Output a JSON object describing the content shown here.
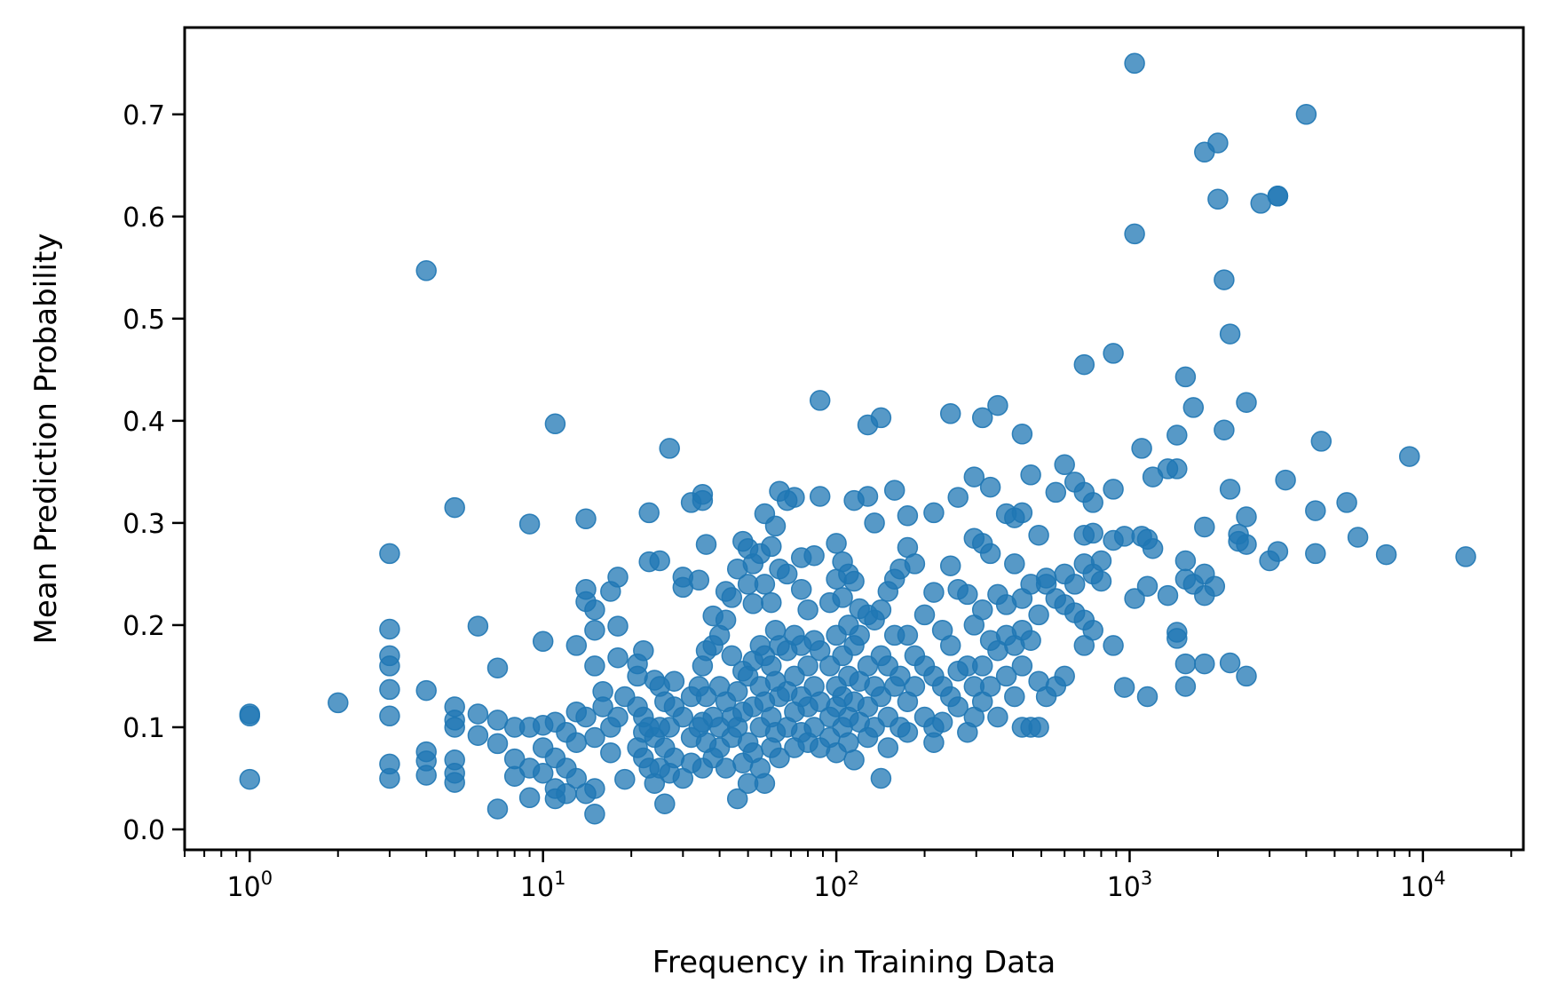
{
  "chart_data": {
    "type": "scatter",
    "title": "",
    "xlabel": "Frequency in Training Data",
    "ylabel": "Mean Prediction Probability",
    "xscale": "log",
    "xlim": [
      0.6,
      22000
    ],
    "ylim": [
      -0.02,
      0.785
    ],
    "x_ticks": [
      {
        "base": "10",
        "exp": "0",
        "value": 1
      },
      {
        "base": "10",
        "exp": "1",
        "value": 10
      },
      {
        "base": "10",
        "exp": "2",
        "value": 100
      },
      {
        "base": "10",
        "exp": "3",
        "value": 1000
      },
      {
        "base": "10",
        "exp": "4",
        "value": 10000
      }
    ],
    "y_ticks": [
      {
        "label": "0.0",
        "value": 0.0
      },
      {
        "label": "0.1",
        "value": 0.1
      },
      {
        "label": "0.2",
        "value": 0.2
      },
      {
        "label": "0.3",
        "value": 0.3
      },
      {
        "label": "0.4",
        "value": 0.4
      },
      {
        "label": "0.5",
        "value": 0.5
      },
      {
        "label": "0.6",
        "value": 0.6
      },
      {
        "label": "0.7",
        "value": 0.7
      }
    ],
    "grid": false,
    "legend": "none",
    "marker_color": "#1f77b4",
    "marker_alpha": 0.75,
    "points": [
      [
        1,
        0.113
      ],
      [
        1,
        0.111
      ],
      [
        1,
        0.049
      ],
      [
        2,
        0.124
      ],
      [
        3,
        0.27
      ],
      [
        3,
        0.196
      ],
      [
        3,
        0.17
      ],
      [
        3,
        0.16
      ],
      [
        3,
        0.137
      ],
      [
        3,
        0.111
      ],
      [
        3,
        0.064
      ],
      [
        3,
        0.05
      ],
      [
        4,
        0.547
      ],
      [
        4,
        0.136
      ],
      [
        4,
        0.076
      ],
      [
        4,
        0.067
      ],
      [
        4,
        0.053
      ],
      [
        5,
        0.315
      ],
      [
        5,
        0.12
      ],
      [
        5,
        0.107
      ],
      [
        5,
        0.1
      ],
      [
        5,
        0.068
      ],
      [
        5,
        0.055
      ],
      [
        5,
        0.046
      ],
      [
        6,
        0.199
      ],
      [
        6,
        0.113
      ],
      [
        6,
        0.092
      ],
      [
        7,
        0.158
      ],
      [
        7,
        0.107
      ],
      [
        7,
        0.084
      ],
      [
        7,
        0.02
      ],
      [
        8,
        0.1
      ],
      [
        8,
        0.069
      ],
      [
        8,
        0.052
      ],
      [
        9,
        0.299
      ],
      [
        9,
        0.1
      ],
      [
        9,
        0.06
      ],
      [
        9,
        0.031
      ],
      [
        10,
        0.184
      ],
      [
        10,
        0.102
      ],
      [
        10,
        0.08
      ],
      [
        10,
        0.055
      ],
      [
        11,
        0.397
      ],
      [
        11,
        0.105
      ],
      [
        11,
        0.07
      ],
      [
        11,
        0.04
      ],
      [
        11,
        0.03
      ],
      [
        12,
        0.095
      ],
      [
        12,
        0.06
      ],
      [
        12,
        0.035
      ],
      [
        13,
        0.18
      ],
      [
        13,
        0.115
      ],
      [
        13,
        0.085
      ],
      [
        13,
        0.05
      ],
      [
        14,
        0.304
      ],
      [
        14,
        0.235
      ],
      [
        14,
        0.223
      ],
      [
        14,
        0.11
      ],
      [
        14,
        0.035
      ],
      [
        15,
        0.215
      ],
      [
        15,
        0.195
      ],
      [
        15,
        0.16
      ],
      [
        15,
        0.09
      ],
      [
        15,
        0.04
      ],
      [
        15,
        0.015
      ],
      [
        16,
        0.135
      ],
      [
        16,
        0.12
      ],
      [
        17,
        0.233
      ],
      [
        17,
        0.1
      ],
      [
        17,
        0.075
      ],
      [
        18,
        0.247
      ],
      [
        18,
        0.199
      ],
      [
        18,
        0.168
      ],
      [
        18,
        0.11
      ],
      [
        19,
        0.13
      ],
      [
        19,
        0.049
      ],
      [
        21,
        0.162
      ],
      [
        21,
        0.15
      ],
      [
        21,
        0.12
      ],
      [
        21,
        0.08
      ],
      [
        22,
        0.175
      ],
      [
        22,
        0.11
      ],
      [
        22,
        0.095
      ],
      [
        22,
        0.07
      ],
      [
        23,
        0.31
      ],
      [
        23,
        0.262
      ],
      [
        23,
        0.1
      ],
      [
        23,
        0.06
      ],
      [
        24,
        0.146
      ],
      [
        24,
        0.09
      ],
      [
        24,
        0.045
      ],
      [
        25,
        0.263
      ],
      [
        25,
        0.14
      ],
      [
        25,
        0.1
      ],
      [
        25,
        0.06
      ],
      [
        26,
        0.125
      ],
      [
        26,
        0.08
      ],
      [
        26,
        0.025
      ],
      [
        27,
        0.373
      ],
      [
        27,
        0.1
      ],
      [
        27,
        0.055
      ],
      [
        28,
        0.145
      ],
      [
        28,
        0.12
      ],
      [
        28,
        0.07
      ],
      [
        30,
        0.247
      ],
      [
        30,
        0.237
      ],
      [
        30,
        0.11
      ],
      [
        30,
        0.05
      ],
      [
        32,
        0.32
      ],
      [
        32,
        0.13
      ],
      [
        32,
        0.09
      ],
      [
        32,
        0.065
      ],
      [
        34,
        0.244
      ],
      [
        34,
        0.14
      ],
      [
        34,
        0.1
      ],
      [
        35,
        0.328
      ],
      [
        35,
        0.322
      ],
      [
        35,
        0.16
      ],
      [
        35,
        0.105
      ],
      [
        35,
        0.06
      ],
      [
        36,
        0.279
      ],
      [
        36,
        0.175
      ],
      [
        36,
        0.13
      ],
      [
        36,
        0.085
      ],
      [
        38,
        0.209
      ],
      [
        38,
        0.18
      ],
      [
        38,
        0.11
      ],
      [
        38,
        0.07
      ],
      [
        40,
        0.19
      ],
      [
        40,
        0.14
      ],
      [
        40,
        0.1
      ],
      [
        40,
        0.08
      ],
      [
        42,
        0.233
      ],
      [
        42,
        0.205
      ],
      [
        42,
        0.125
      ],
      [
        42,
        0.06
      ],
      [
        44,
        0.227
      ],
      [
        44,
        0.17
      ],
      [
        44,
        0.11
      ],
      [
        44,
        0.09
      ],
      [
        46,
        0.255
      ],
      [
        46,
        0.135
      ],
      [
        46,
        0.1
      ],
      [
        46,
        0.03
      ],
      [
        48,
        0.282
      ],
      [
        48,
        0.155
      ],
      [
        48,
        0.115
      ],
      [
        48,
        0.065
      ],
      [
        50,
        0.275
      ],
      [
        50,
        0.24
      ],
      [
        50,
        0.15
      ],
      [
        50,
        0.085
      ],
      [
        50,
        0.045
      ],
      [
        52,
        0.26
      ],
      [
        52,
        0.221
      ],
      [
        52,
        0.165
      ],
      [
        52,
        0.12
      ],
      [
        52,
        0.075
      ],
      [
        55,
        0.27
      ],
      [
        55,
        0.18
      ],
      [
        55,
        0.14
      ],
      [
        55,
        0.1
      ],
      [
        55,
        0.06
      ],
      [
        57,
        0.309
      ],
      [
        57,
        0.24
      ],
      [
        57,
        0.17
      ],
      [
        57,
        0.125
      ],
      [
        57,
        0.045
      ],
      [
        60,
        0.277
      ],
      [
        60,
        0.222
      ],
      [
        60,
        0.16
      ],
      [
        60,
        0.11
      ],
      [
        60,
        0.08
      ],
      [
        62,
        0.297
      ],
      [
        62,
        0.195
      ],
      [
        62,
        0.145
      ],
      [
        62,
        0.095
      ],
      [
        64,
        0.331
      ],
      [
        64,
        0.255
      ],
      [
        64,
        0.18
      ],
      [
        64,
        0.13
      ],
      [
        64,
        0.07
      ],
      [
        68,
        0.322
      ],
      [
        68,
        0.25
      ],
      [
        68,
        0.175
      ],
      [
        68,
        0.135
      ],
      [
        68,
        0.1
      ],
      [
        72,
        0.325
      ],
      [
        72,
        0.19
      ],
      [
        72,
        0.15
      ],
      [
        72,
        0.115
      ],
      [
        72,
        0.08
      ],
      [
        76,
        0.266
      ],
      [
        76,
        0.235
      ],
      [
        76,
        0.18
      ],
      [
        76,
        0.13
      ],
      [
        76,
        0.095
      ],
      [
        80,
        0.215
      ],
      [
        80,
        0.16
      ],
      [
        80,
        0.12
      ],
      [
        80,
        0.085
      ],
      [
        84,
        0.268
      ],
      [
        84,
        0.185
      ],
      [
        84,
        0.14
      ],
      [
        84,
        0.1
      ],
      [
        88,
        0.42
      ],
      [
        88,
        0.326
      ],
      [
        88,
        0.175
      ],
      [
        88,
        0.125
      ],
      [
        88,
        0.08
      ],
      [
        95,
        0.222
      ],
      [
        95,
        0.16
      ],
      [
        95,
        0.11
      ],
      [
        95,
        0.09
      ],
      [
        100,
        0.28
      ],
      [
        100,
        0.245
      ],
      [
        100,
        0.19
      ],
      [
        100,
        0.14
      ],
      [
        100,
        0.12
      ],
      [
        100,
        0.075
      ],
      [
        105,
        0.262
      ],
      [
        105,
        0.227
      ],
      [
        105,
        0.17
      ],
      [
        105,
        0.13
      ],
      [
        105,
        0.1
      ],
      [
        110,
        0.25
      ],
      [
        110,
        0.2
      ],
      [
        110,
        0.15
      ],
      [
        110,
        0.11
      ],
      [
        110,
        0.085
      ],
      [
        115,
        0.322
      ],
      [
        115,
        0.243
      ],
      [
        115,
        0.18
      ],
      [
        115,
        0.125
      ],
      [
        115,
        0.068
      ],
      [
        120,
        0.216
      ],
      [
        120,
        0.19
      ],
      [
        120,
        0.145
      ],
      [
        120,
        0.105
      ],
      [
        128,
        0.396
      ],
      [
        128,
        0.326
      ],
      [
        128,
        0.21
      ],
      [
        128,
        0.16
      ],
      [
        128,
        0.12
      ],
      [
        128,
        0.09
      ],
      [
        135,
        0.3
      ],
      [
        135,
        0.205
      ],
      [
        135,
        0.14
      ],
      [
        135,
        0.1
      ],
      [
        142,
        0.403
      ],
      [
        142,
        0.215
      ],
      [
        142,
        0.17
      ],
      [
        142,
        0.13
      ],
      [
        142,
        0.05
      ],
      [
        150,
        0.233
      ],
      [
        150,
        0.16
      ],
      [
        150,
        0.11
      ],
      [
        150,
        0.08
      ],
      [
        158,
        0.332
      ],
      [
        158,
        0.245
      ],
      [
        158,
        0.19
      ],
      [
        158,
        0.14
      ],
      [
        165,
        0.255
      ],
      [
        165,
        0.15
      ],
      [
        165,
        0.1
      ],
      [
        175,
        0.307
      ],
      [
        175,
        0.276
      ],
      [
        175,
        0.19
      ],
      [
        175,
        0.125
      ],
      [
        175,
        0.095
      ],
      [
        185,
        0.26
      ],
      [
        185,
        0.17
      ],
      [
        185,
        0.14
      ],
      [
        200,
        0.21
      ],
      [
        200,
        0.16
      ],
      [
        200,
        0.11
      ],
      [
        215,
        0.31
      ],
      [
        215,
        0.232
      ],
      [
        215,
        0.15
      ],
      [
        215,
        0.1
      ],
      [
        215,
        0.085
      ],
      [
        230,
        0.195
      ],
      [
        230,
        0.14
      ],
      [
        230,
        0.105
      ],
      [
        245,
        0.407
      ],
      [
        245,
        0.258
      ],
      [
        245,
        0.18
      ],
      [
        245,
        0.13
      ],
      [
        260,
        0.325
      ],
      [
        260,
        0.235
      ],
      [
        260,
        0.155
      ],
      [
        260,
        0.12
      ],
      [
        280,
        0.23
      ],
      [
        280,
        0.16
      ],
      [
        280,
        0.095
      ],
      [
        295,
        0.345
      ],
      [
        295,
        0.285
      ],
      [
        295,
        0.2
      ],
      [
        295,
        0.14
      ],
      [
        295,
        0.11
      ],
      [
        315,
        0.403
      ],
      [
        315,
        0.28
      ],
      [
        315,
        0.215
      ],
      [
        315,
        0.16
      ],
      [
        315,
        0.125
      ],
      [
        335,
        0.335
      ],
      [
        335,
        0.27
      ],
      [
        335,
        0.185
      ],
      [
        335,
        0.14
      ],
      [
        355,
        0.415
      ],
      [
        355,
        0.23
      ],
      [
        355,
        0.175
      ],
      [
        355,
        0.11
      ],
      [
        380,
        0.309
      ],
      [
        380,
        0.22
      ],
      [
        380,
        0.19
      ],
      [
        380,
        0.15
      ],
      [
        405,
        0.305
      ],
      [
        405,
        0.26
      ],
      [
        405,
        0.18
      ],
      [
        405,
        0.13
      ],
      [
        430,
        0.387
      ],
      [
        430,
        0.31
      ],
      [
        430,
        0.226
      ],
      [
        430,
        0.195
      ],
      [
        430,
        0.16
      ],
      [
        430,
        0.1
      ],
      [
        460,
        0.347
      ],
      [
        460,
        0.24
      ],
      [
        460,
        0.185
      ],
      [
        460,
        0.1
      ],
      [
        490,
        0.288
      ],
      [
        490,
        0.21
      ],
      [
        490,
        0.145
      ],
      [
        490,
        0.1
      ],
      [
        520,
        0.246
      ],
      [
        520,
        0.24
      ],
      [
        520,
        0.13
      ],
      [
        560,
        0.33
      ],
      [
        560,
        0.226
      ],
      [
        560,
        0.14
      ],
      [
        600,
        0.357
      ],
      [
        600,
        0.25
      ],
      [
        600,
        0.22
      ],
      [
        600,
        0.15
      ],
      [
        650,
        0.34
      ],
      [
        650,
        0.24
      ],
      [
        650,
        0.212
      ],
      [
        700,
        0.455
      ],
      [
        700,
        0.33
      ],
      [
        700,
        0.288
      ],
      [
        700,
        0.26
      ],
      [
        700,
        0.205
      ],
      [
        700,
        0.18
      ],
      [
        750,
        0.29
      ],
      [
        750,
        0.32
      ],
      [
        750,
        0.25
      ],
      [
        750,
        0.195
      ],
      [
        800,
        0.263
      ],
      [
        800,
        0.243
      ],
      [
        880,
        0.466
      ],
      [
        880,
        0.333
      ],
      [
        880,
        0.283
      ],
      [
        880,
        0.18
      ],
      [
        960,
        0.287
      ],
      [
        960,
        0.139
      ],
      [
        1040,
        0.75
      ],
      [
        1040,
        0.583
      ],
      [
        1040,
        0.226
      ],
      [
        1100,
        0.373
      ],
      [
        1100,
        0.287
      ],
      [
        1150,
        0.284
      ],
      [
        1150,
        0.238
      ],
      [
        1150,
        0.13
      ],
      [
        1200,
        0.345
      ],
      [
        1200,
        0.275
      ],
      [
        1350,
        0.353
      ],
      [
        1350,
        0.229
      ],
      [
        1450,
        0.386
      ],
      [
        1450,
        0.353
      ],
      [
        1450,
        0.193
      ],
      [
        1450,
        0.187
      ],
      [
        1550,
        0.443
      ],
      [
        1550,
        0.263
      ],
      [
        1550,
        0.245
      ],
      [
        1550,
        0.162
      ],
      [
        1550,
        0.14
      ],
      [
        1650,
        0.413
      ],
      [
        1650,
        0.24
      ],
      [
        1800,
        0.663
      ],
      [
        1800,
        0.296
      ],
      [
        1800,
        0.25
      ],
      [
        1800,
        0.229
      ],
      [
        1800,
        0.162
      ],
      [
        1950,
        0.238
      ],
      [
        2000,
        0.672
      ],
      [
        2000,
        0.617
      ],
      [
        2100,
        0.538
      ],
      [
        2100,
        0.391
      ],
      [
        2200,
        0.485
      ],
      [
        2200,
        0.333
      ],
      [
        2200,
        0.163
      ],
      [
        2350,
        0.289
      ],
      [
        2350,
        0.282
      ],
      [
        2500,
        0.418
      ],
      [
        2500,
        0.306
      ],
      [
        2500,
        0.279
      ],
      [
        2500,
        0.15
      ],
      [
        2800,
        0.613
      ],
      [
        3000,
        0.263
      ],
      [
        3200,
        0.62
      ],
      [
        3200,
        0.62
      ],
      [
        3200,
        0.272
      ],
      [
        3400,
        0.342
      ],
      [
        4000,
        0.7
      ],
      [
        4300,
        0.312
      ],
      [
        4300,
        0.27
      ],
      [
        4500,
        0.38
      ],
      [
        5500,
        0.32
      ],
      [
        6000,
        0.286
      ],
      [
        7500,
        0.269
      ],
      [
        9000,
        0.365
      ],
      [
        14000,
        0.267
      ]
    ]
  }
}
